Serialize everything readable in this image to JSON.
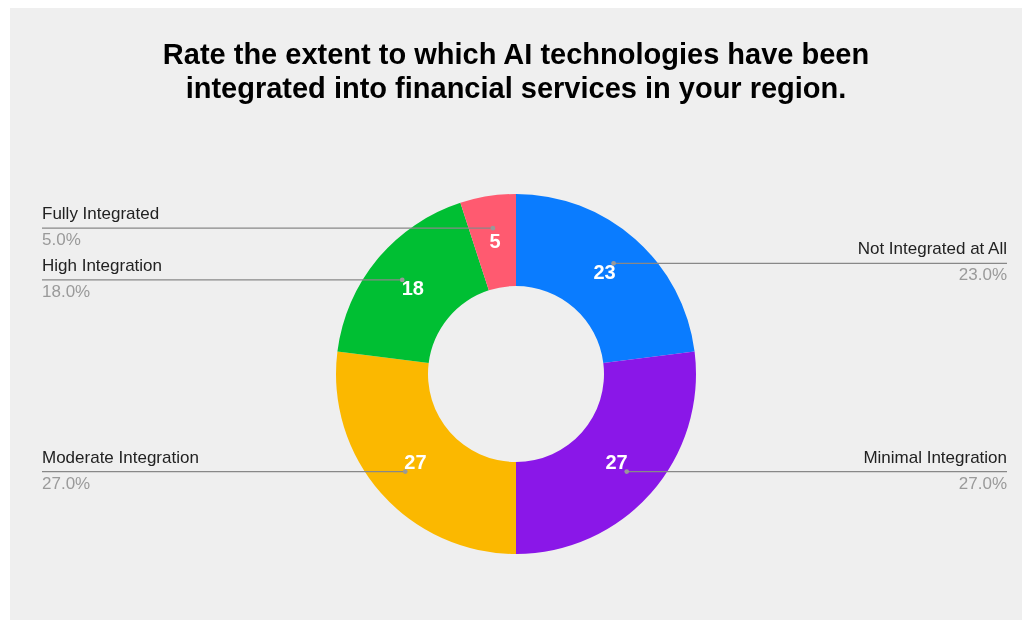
{
  "chart_data": {
    "type": "donut",
    "title": "Rate the extent to which AI technologies have been integrated into financial services in your region.",
    "categories": [
      "Not Integrated at All",
      "Minimal Integration",
      "Moderate Integration",
      "High Integration",
      "Fully Integrated"
    ],
    "values": [
      23,
      27,
      27,
      18,
      5
    ],
    "colors": [
      "#0a7cff",
      "#8a17e8",
      "#fbb800",
      "#00bf33",
      "#ff5a70"
    ],
    "annotations": [
      {
        "text": "23.0%",
        "x": "Not Integrated at All"
      },
      {
        "text": "27.0%",
        "x": "Minimal Integration"
      },
      {
        "text": "27.0%",
        "x": "Moderate Integration"
      },
      {
        "text": "18.0%",
        "x": "High Integration"
      },
      {
        "text": "5.0%",
        "x": "Fully Integrated"
      }
    ],
    "data_labels": true
  }
}
